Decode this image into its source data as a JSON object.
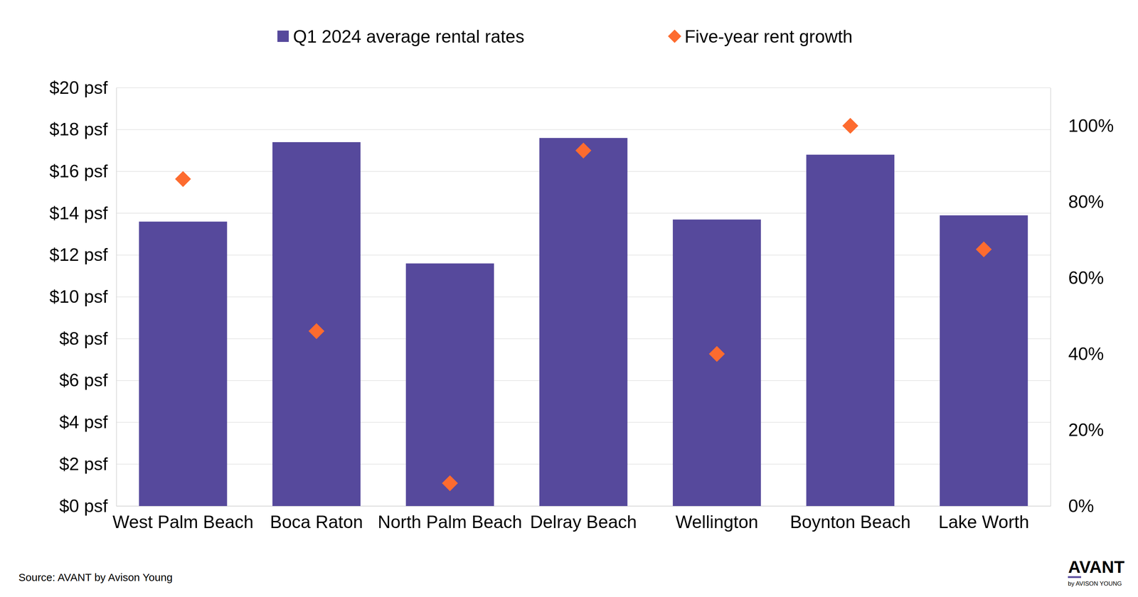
{
  "chart_data": {
    "type": "bar",
    "categories": [
      "West Palm Beach",
      "Boca Raton",
      "North Palm Beach",
      "Delray Beach",
      "Wellington",
      "Boynton Beach",
      "Lake Worth"
    ],
    "series": [
      {
        "name": "Q1 2024 average rental rates",
        "type": "bar",
        "color": "#56499c",
        "values": [
          13.6,
          17.4,
          11.6,
          17.6,
          13.7,
          16.8,
          13.9
        ]
      },
      {
        "name": "Five-year rent growth",
        "type": "scatter",
        "marker": "diamond",
        "color": "#fd6b2f",
        "axis": "y2",
        "values": [
          86,
          46,
          6,
          93.5,
          40,
          100,
          67.5
        ]
      }
    ],
    "ylim": [
      0,
      20
    ],
    "yticks": [
      {
        "value": 0,
        "label": "$0 psf"
      },
      {
        "value": 2,
        "label": "$2 psf"
      },
      {
        "value": 4,
        "label": "$4 psf"
      },
      {
        "value": 6,
        "label": "$6 psf"
      },
      {
        "value": 8,
        "label": "$8 psf"
      },
      {
        "value": 10,
        "label": "$10 psf"
      },
      {
        "value": 12,
        "label": "$12 psf"
      },
      {
        "value": 14,
        "label": "$14 psf"
      },
      {
        "value": 16,
        "label": "$16 psf"
      },
      {
        "value": 18,
        "label": "$18 psf"
      },
      {
        "value": 20,
        "label": "$20 psf"
      }
    ],
    "y2lim": [
      0,
      110
    ],
    "y2ticks": [
      {
        "value": 0,
        "label": "0%"
      },
      {
        "value": 20,
        "label": "20%"
      },
      {
        "value": 40,
        "label": "40%"
      },
      {
        "value": 60,
        "label": "60%"
      },
      {
        "value": 80,
        "label": "80%"
      },
      {
        "value": 100,
        "label": "100%"
      }
    ],
    "grid": true,
    "legend": "top",
    "source": "Source: AVANT by Avison Young",
    "logo": "AVANT",
    "logo_sub": "by AVISON YOUNG"
  }
}
